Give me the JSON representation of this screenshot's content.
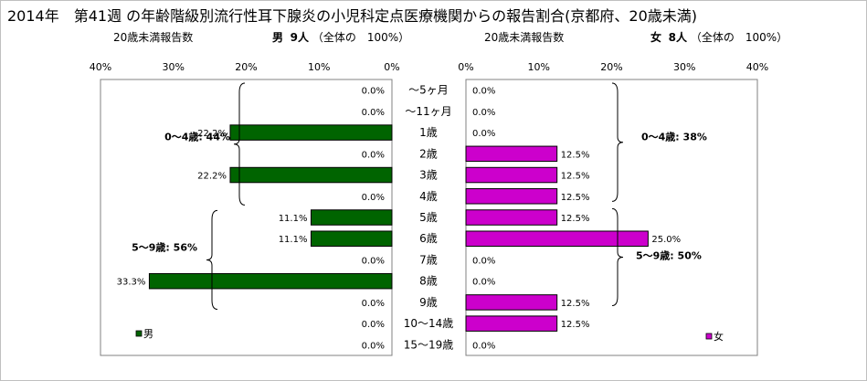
{
  "title": "2014年　第41週 の年齢階級別流行性耳下腺炎の小児科定点医療機関からの報告割合(京都府、20歳未満)",
  "left_header": {
    "subtitle": "20歳未満報告数",
    "sex": "男",
    "count": "9人",
    "total": "（全体の　100%）"
  },
  "right_header": {
    "subtitle": "20歳未満報告数",
    "sex": "女",
    "count": "8人",
    "total": "（全体の　100%）"
  },
  "chart_data": {
    "type": "bar",
    "orientation": "horizontal-butterfly",
    "categories": [
      "～5ヶ月",
      "～11ヶ月",
      "1歳",
      "2歳",
      "3歳",
      "4歳",
      "5歳",
      "6歳",
      "7歳",
      "8歳",
      "9歳",
      "10～14歳",
      "15～19歳"
    ],
    "xlim": [
      0,
      40
    ],
    "ticks": [
      "40%",
      "30%",
      "20%",
      "10%",
      "0%"
    ],
    "ticks_right": [
      "0%",
      "10%",
      "20%",
      "30%",
      "40%"
    ],
    "series": [
      {
        "name": "男",
        "color": "#006400",
        "values": [
          0.0,
          0.0,
          22.2,
          0.0,
          22.2,
          0.0,
          11.1,
          11.1,
          0.0,
          33.3,
          0.0,
          0.0,
          0.0
        ],
        "labels": [
          "0.0%",
          "0.0%",
          "22.2%",
          "0.0%",
          "22.2%",
          "0.0%",
          "11.1%",
          "11.1%",
          "0.0%",
          "33.3%",
          "0.0%",
          "0.0%",
          "0.0%"
        ]
      },
      {
        "name": "女",
        "color": "#cc00cc",
        "values": [
          0.0,
          0.0,
          0.0,
          12.5,
          12.5,
          12.5,
          12.5,
          25.0,
          0.0,
          0.0,
          12.5,
          12.5,
          0.0
        ],
        "labels": [
          "0.0%",
          "0.0%",
          "0.0%",
          "12.5%",
          "12.5%",
          "12.5%",
          "12.5%",
          "25.0%",
          "0.0%",
          "0.0%",
          "12.5%",
          "12.5%",
          "0.0%"
        ]
      }
    ],
    "annotations": {
      "left_0_4": "0～4歳: 44%",
      "left_5_9": "5～9歳: 56%",
      "right_0_4": "0～4歳: 38%",
      "right_5_9": "5～9歳: 50%"
    },
    "legend": {
      "left": "男",
      "right": "女",
      "placement": "bottom-inside"
    }
  }
}
